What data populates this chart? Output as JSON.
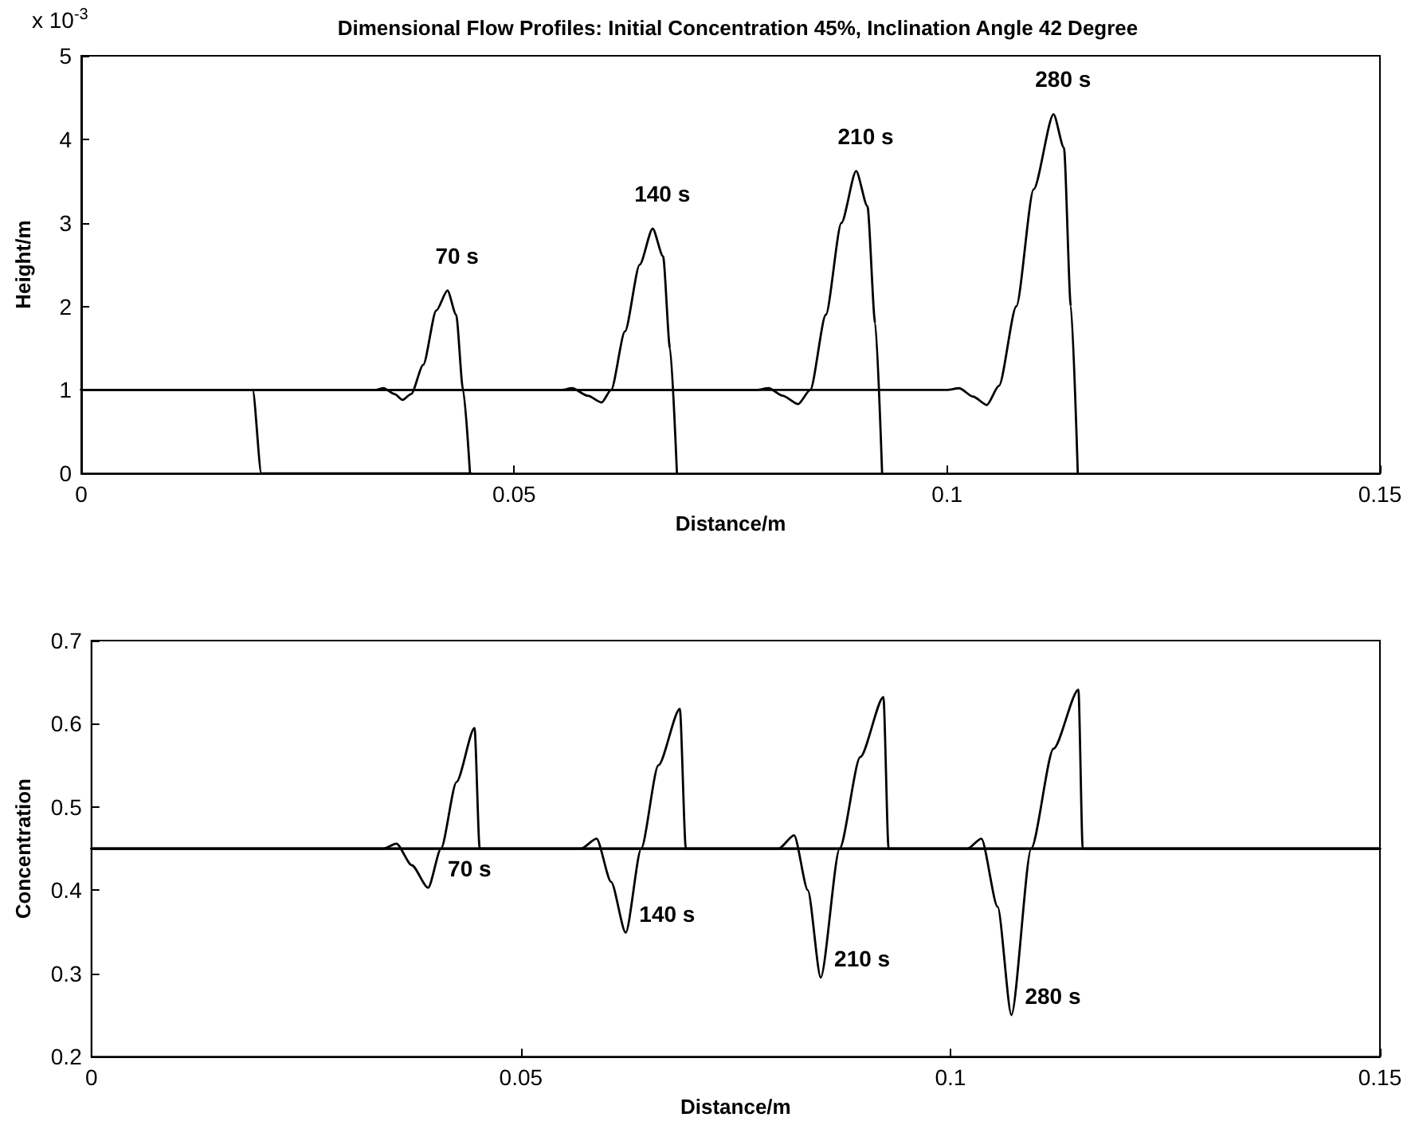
{
  "chart_data": [
    {
      "type": "line",
      "title": "Dimensional Flow Profiles: Initial Concentration 45%, Inclination Angle 42 Degree",
      "xlabel": "Distance/m",
      "ylabel": "Height/m",
      "xlim": [
        0,
        0.15
      ],
      "xticks": [
        0,
        0.05,
        0.1,
        0.15
      ],
      "ylim": [
        0,
        5
      ],
      "yticks": [
        0,
        1,
        2,
        3,
        4,
        5
      ],
      "marker": "none",
      "line_style": "solid",
      "grid": false,
      "annotations": [
        "x 10$^{-3}$"
      ],
      "series": [
        {
          "color": "#000000",
          "x": [
            0,
            0.0198,
            0.0208,
            0.045
          ],
          "values": [
            1,
            1,
            0,
            0
          ]
        },
        {
          "name": "70 s",
          "color": "#000000",
          "x": [
            0,
            0.034,
            0.0349,
            0.0362,
            0.0371,
            0.0381,
            0.0395,
            0.041,
            0.0423,
            0.0433,
            0.0441,
            0.0449
          ],
          "values": [
            1,
            1,
            1.02,
            0.95,
            0.88,
            0.95,
            1.3,
            1.95,
            2.19,
            1.9,
            1.0,
            0
          ]
        },
        {
          "name": "140 s",
          "color": "#000000",
          "x": [
            0,
            0.0555,
            0.0567,
            0.0585,
            0.0601,
            0.0612,
            0.0628,
            0.0645,
            0.066,
            0.0672,
            0.068,
            0.0688
          ],
          "values": [
            1,
            1,
            1.02,
            0.93,
            0.85,
            1.0,
            1.7,
            2.5,
            2.93,
            2.6,
            1.5,
            0
          ]
        },
        {
          "name": "210 s",
          "color": "#000000",
          "x": [
            0,
            0.078,
            0.0794,
            0.081,
            0.0828,
            0.0842,
            0.086,
            0.0878,
            0.0895,
            0.0908,
            0.0917,
            0.0925
          ],
          "values": [
            1,
            1,
            1.02,
            0.93,
            0.83,
            1.0,
            1.9,
            3.0,
            3.62,
            3.2,
            1.8,
            0
          ]
        },
        {
          "name": "280 s",
          "color": "#000000",
          "x": [
            0,
            0.1,
            0.1014,
            0.103,
            0.1046,
            0.106,
            0.108,
            0.11,
            0.1123,
            0.1135,
            0.1143,
            0.1151
          ],
          "values": [
            1,
            1,
            1.02,
            0.92,
            0.82,
            1.05,
            2.0,
            3.4,
            4.3,
            3.9,
            2.0,
            0
          ]
        }
      ]
    },
    {
      "type": "line",
      "xlabel": "Distance/m",
      "ylabel": "Concentration",
      "xlim": [
        0,
        0.15
      ],
      "xticks": [
        0,
        0.05,
        0.1,
        0.15
      ],
      "ylim": [
        0.2,
        0.7
      ],
      "yticks": [
        0.2,
        0.3,
        0.4,
        0.5,
        0.6,
        0.7
      ],
      "marker": "none",
      "line_style": "solid",
      "grid": false,
      "series": [
        {
          "name": "70 s",
          "color": "#000000",
          "x": [
            0,
            0.034,
            0.0355,
            0.0373,
            0.0392,
            0.0407,
            0.0425,
            0.0446,
            0.0452,
            0.15
          ],
          "values": [
            0.45,
            0.45,
            0.456,
            0.43,
            0.403,
            0.45,
            0.53,
            0.595,
            0.45,
            0.45
          ]
        },
        {
          "name": "140 s",
          "color": "#000000",
          "x": [
            0,
            0.057,
            0.0588,
            0.0605,
            0.0622,
            0.064,
            0.066,
            0.0685,
            0.0692,
            0.15
          ],
          "values": [
            0.45,
            0.45,
            0.462,
            0.41,
            0.349,
            0.45,
            0.55,
            0.618,
            0.45,
            0.45
          ]
        },
        {
          "name": "210 s",
          "color": "#000000",
          "x": [
            0,
            0.08,
            0.0818,
            0.0834,
            0.0849,
            0.0871,
            0.0895,
            0.0922,
            0.0928,
            0.15
          ],
          "values": [
            0.45,
            0.45,
            0.466,
            0.4,
            0.295,
            0.45,
            0.56,
            0.632,
            0.45,
            0.45
          ]
        },
        {
          "name": "280 s",
          "color": "#000000",
          "x": [
            0,
            0.102,
            0.1036,
            0.1055,
            0.1071,
            0.1094,
            0.112,
            0.1149,
            0.1154,
            0.15
          ],
          "values": [
            0.45,
            0.45,
            0.462,
            0.38,
            0.25,
            0.45,
            0.57,
            0.641,
            0.45,
            0.45
          ]
        }
      ]
    }
  ]
}
